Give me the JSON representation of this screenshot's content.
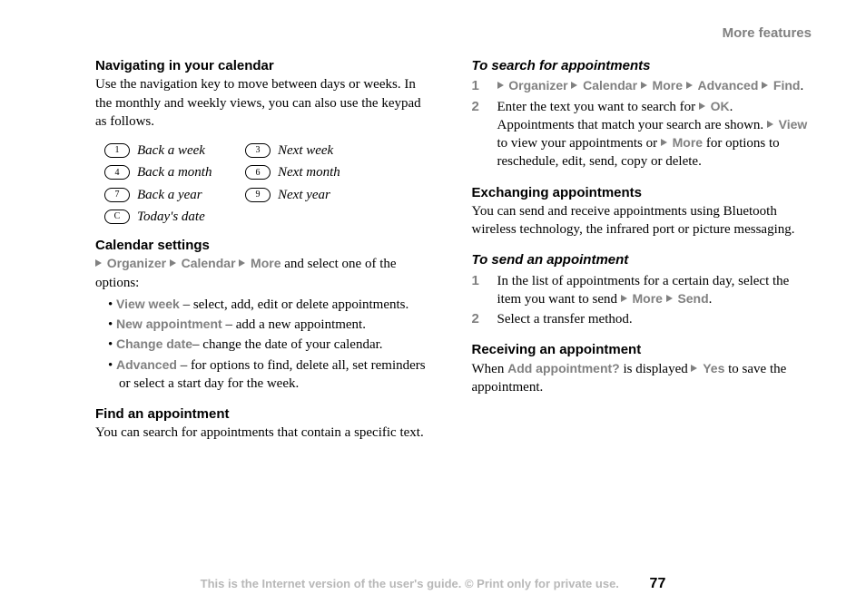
{
  "colors": {
    "header_gray": "#808080",
    "footer_gray": "#b8b8b8",
    "text_black": "#000000",
    "background": "#ffffff"
  },
  "header": {
    "title": "More features"
  },
  "left": {
    "s1": {
      "heading": "Navigating in your calendar",
      "body": "Use the navigation key to move between days or weeks. In the monthly and weekly views, you can also use the keypad as follows",
      "period": "."
    },
    "keys": [
      [
        {
          "key": "1",
          "label": "Back a week"
        },
        {
          "key": "3",
          "label": "Next week"
        }
      ],
      [
        {
          "key": "4",
          "label": "Back a month"
        },
        {
          "key": "6",
          "label": "Next month"
        }
      ],
      [
        {
          "key": "7",
          "label": "Back a year"
        },
        {
          "key": "9",
          "label": "Next year"
        }
      ],
      [
        {
          "key": "C",
          "label": "Today's date"
        }
      ]
    ],
    "s2": {
      "heading": "Calendar settings",
      "nav": [
        "Organizer",
        "Calendar",
        "More"
      ],
      "tail": " and select one of the options:",
      "options": [
        {
          "term": "View week",
          "desc": " – select, add, edit or delete appointments."
        },
        {
          "term": "New appointment",
          "desc": " – add a new appointment."
        },
        {
          "term": "Change date",
          "desc": "– change the date of your calendar."
        },
        {
          "term": "Advanced",
          "desc": " – for options to find, delete all, set reminders or select a start day for the week."
        }
      ]
    },
    "s3": {
      "heading": "Find an appointment",
      "body": "You can search for appointments that contain a specific text."
    }
  },
  "right": {
    "s1": {
      "heading": "To search for appointments",
      "step1_nav": [
        "Organizer",
        "Calendar",
        "More",
        "Advanced",
        "Find"
      ],
      "step2_a": "Enter the text you want to search for ",
      "step2_ok": "OK",
      "step2_b": ". Appointments that match your search are shown. ",
      "step2_view": "View",
      "step2_c": " to view your appointments or ",
      "step2_more": "More",
      "step2_d": " for options to reschedule, edit, send, copy or delete."
    },
    "s2": {
      "heading": "Exchanging appointments",
      "body": "You can send and receive appointments using Bluetooth wireless technology, the infrared port or picture messaging."
    },
    "s3": {
      "heading": "To send an appointment",
      "step1_a": "In the list of appointments for a certain day, select the item you want to send ",
      "step1_more": "More",
      "step1_send": "Send",
      "step2": "Select a transfer method."
    },
    "s4": {
      "heading": "Receiving an appointment",
      "a": "When ",
      "term": "Add appointment?",
      "b": " is displayed ",
      "yes": "Yes",
      "c": " to save the appointment."
    }
  },
  "footer": {
    "text": "This is the Internet version of the user's guide. © Print only for private use.",
    "page": "77"
  },
  "numbers": {
    "one": "1",
    "two": "2"
  }
}
